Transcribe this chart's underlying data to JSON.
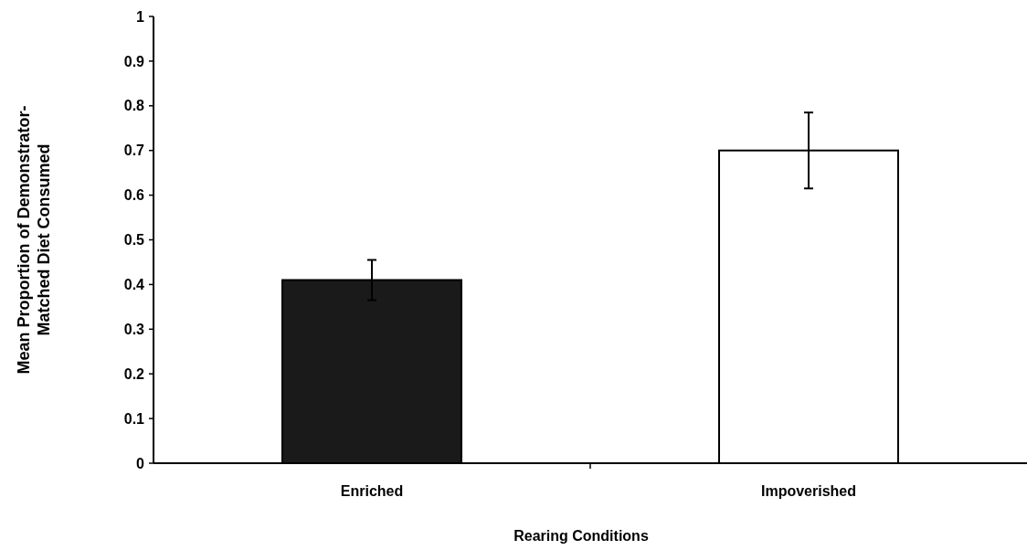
{
  "chart_data": {
    "type": "bar",
    "xlabel": "Rearing Conditions",
    "ylabel": "Mean Proportion of Demonstrator-Matched Diet Consumed",
    "categories": [
      "Enriched",
      "Impoverished"
    ],
    "values": [
      0.41,
      0.7
    ],
    "colors": [
      "#1a1a1a",
      "#ffffff"
    ],
    "errors": [
      0.045,
      0.085
    ],
    "ylim": [
      0,
      1
    ],
    "yticks": [
      0,
      0.1,
      0.2,
      0.3,
      0.4,
      0.5,
      0.6,
      0.7,
      0.8,
      0.9,
      1
    ],
    "grid": false
  }
}
